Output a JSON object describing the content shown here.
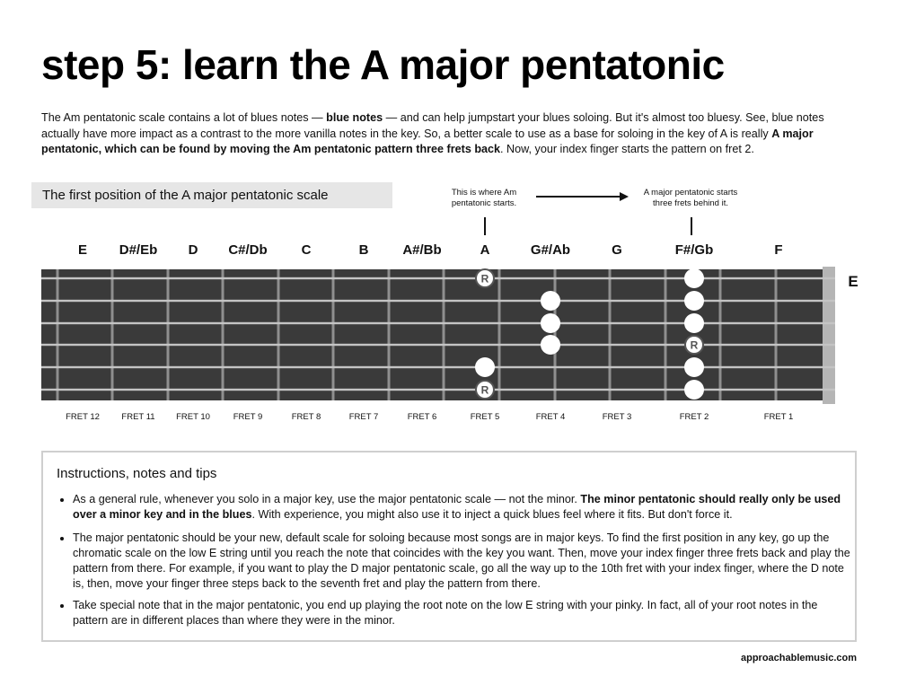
{
  "title": "step 5: learn the A major pentatonic",
  "intro": {
    "p1": "The Am pentatonic scale contains a lot of blues notes — ",
    "p1_bold": "blue notes",
    "p2": " — and can help jumpstart your blues soloing. But it's almost too bluesy. See, blue notes actually have more impact as a contrast to the more vanilla notes in the key. So, a better scale to use as a base for soloing in the key of A is really ",
    "p2_bold": "A major pentatonic, which can be found by moving the Am pentatonic pattern three frets back",
    "p3": ". Now, your index finger starts the pattern on fret 2."
  },
  "section_label": "The first position of the A major pentatonic scale",
  "annotations": {
    "left": "This is where Am pentatonic starts.",
    "right": "A major pentatonic starts three frets behind it."
  },
  "fretboard": {
    "note_names": [
      "E",
      "D#/Eb",
      "D",
      "C#/Db",
      "C",
      "B",
      "A#/Bb",
      "A",
      "G#/Ab",
      "G",
      "F#/Gb",
      "F"
    ],
    "fret_labels": [
      "FRET 12",
      "FRET 11",
      "FRET 10",
      "FRET 9",
      "FRET 8",
      "FRET 7",
      "FRET 6",
      "FRET 5",
      "FRET 4",
      "FRET 3",
      "FRET 2",
      "FRET 1"
    ],
    "open_string_label": "E",
    "root_marker": "R",
    "dots": [
      {
        "fret": 5,
        "string": 1,
        "root": true
      },
      {
        "fret": 2,
        "string": 1,
        "root": false
      },
      {
        "fret": 4,
        "string": 2,
        "root": false
      },
      {
        "fret": 2,
        "string": 2,
        "root": false
      },
      {
        "fret": 4,
        "string": 3,
        "root": false
      },
      {
        "fret": 2,
        "string": 3,
        "root": false
      },
      {
        "fret": 4,
        "string": 4,
        "root": false
      },
      {
        "fret": 2,
        "string": 4,
        "root": true
      },
      {
        "fret": 5,
        "string": 5,
        "root": false
      },
      {
        "fret": 2,
        "string": 5,
        "root": false
      },
      {
        "fret": 5,
        "string": 6,
        "root": true
      },
      {
        "fret": 2,
        "string": 6,
        "root": false
      }
    ]
  },
  "instructions": {
    "heading": "Instructions, notes and tips",
    "b1_a": "As a general rule, whenever you solo in a major key, use the major pentatonic scale — not the minor. ",
    "b1_bold": "The minor pentatonic should really only be used over a minor key and in the blues",
    "b1_b": ". With experience, you might also use it to inject a quick blues feel where it fits. But don't force it.",
    "b2": "The major pentatonic should be your new, default scale for soloing because most songs are in major keys. To find the first position in any key, go up the chromatic scale on the low E string until you reach the note that coincides with the key you want. Then, move your index finger three frets back and play the pattern from there. For example, if you want to play the D major pentatonic scale, go all the way up to the 10th fret with your index finger, where the D note is, then, move your finger three steps back to the seventh fret and play the pattern from there.",
    "b3": "Take special note that in the major pentatonic, you end up playing the root note on the low E string with your pinky. In fact, all of your root notes in the pattern are in different places than where they were in the minor."
  },
  "footer": "approachablemusic.com",
  "colors": {
    "fretboard": "#3a3a3a",
    "string": "#c4c4c4",
    "fret": "#8f8f8f",
    "nut": "#b5b5b5",
    "label_bg": "#e6e6e6",
    "box_border": "#cfcfcf"
  }
}
